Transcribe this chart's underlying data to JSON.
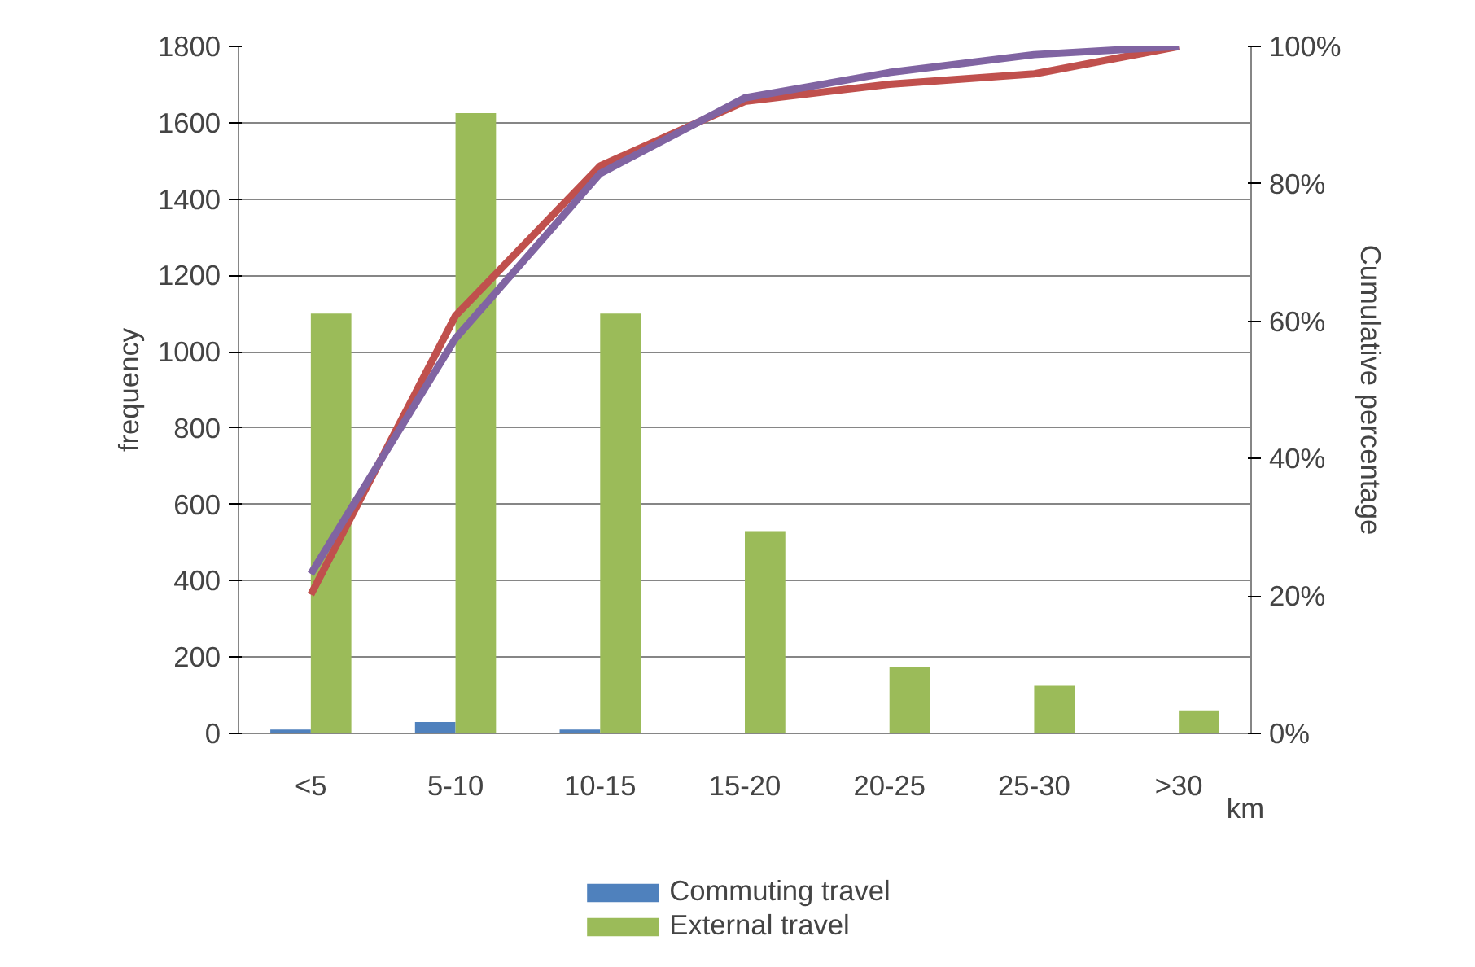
{
  "chart_data": {
    "type": "bar",
    "categories": [
      "<5",
      "5-10",
      "10-15",
      "15-20",
      "20-25",
      "25-30",
      ">30"
    ],
    "xlabel": "km",
    "ylabel": "frequency",
    "y2label": "Cumulative percentage",
    "series": [
      {
        "name": "Commuting travel",
        "color": "#4f81bd",
        "values": [
          10,
          30,
          10,
          0,
          0,
          0,
          0
        ]
      },
      {
        "name": "External travel",
        "color": "#9bbb59",
        "values": [
          1100,
          1625,
          1100,
          530,
          175,
          125,
          60
        ]
      },
      {
        "type": "line",
        "axis": "y2",
        "color": "#c0504d",
        "values": [
          20.2,
          60.8,
          82.6,
          92,
          94.5,
          96,
          100
        ]
      },
      {
        "type": "line",
        "axis": "y2",
        "color": "#8064a2",
        "values": [
          23.2,
          57.5,
          81.5,
          92.5,
          96.2,
          98.8,
          100
        ]
      }
    ],
    "ylim": [
      0,
      1800
    ],
    "yticks": [
      0,
      200,
      400,
      600,
      800,
      1000,
      1200,
      1400,
      1600,
      1800
    ],
    "y2lim": [
      0,
      100
    ],
    "y2ticks": [
      {
        "value": 0,
        "label": "0%"
      },
      {
        "value": 20,
        "label": "20%"
      },
      {
        "value": 40,
        "label": "40%"
      },
      {
        "value": 60,
        "label": "60%"
      },
      {
        "value": 80,
        "label": "80%"
      },
      {
        "value": 100,
        "label": "100%"
      }
    ],
    "grid": "y",
    "legend": "bottom",
    "marker": "none",
    "line_style": "solid"
  }
}
